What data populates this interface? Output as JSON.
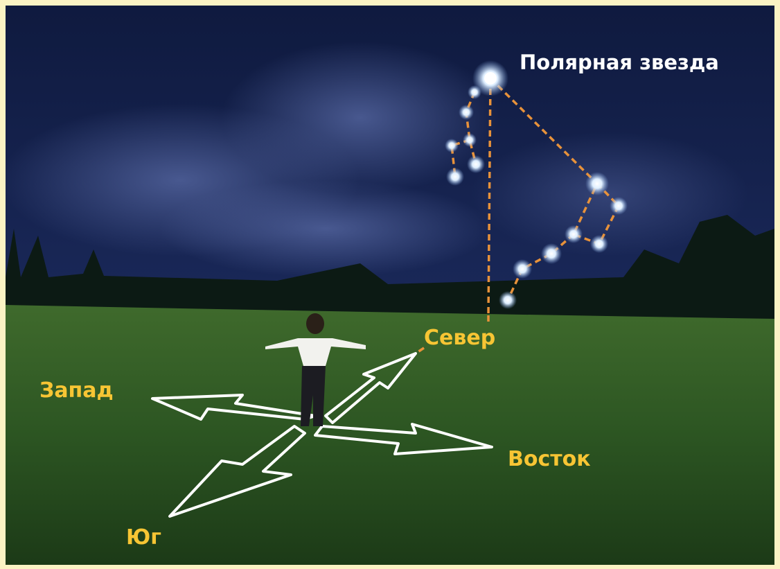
{
  "labels": {
    "polaris": "Полярная звезда",
    "north": "Север",
    "west": "Запад",
    "east": "Восток",
    "south": "Юг"
  }
}
